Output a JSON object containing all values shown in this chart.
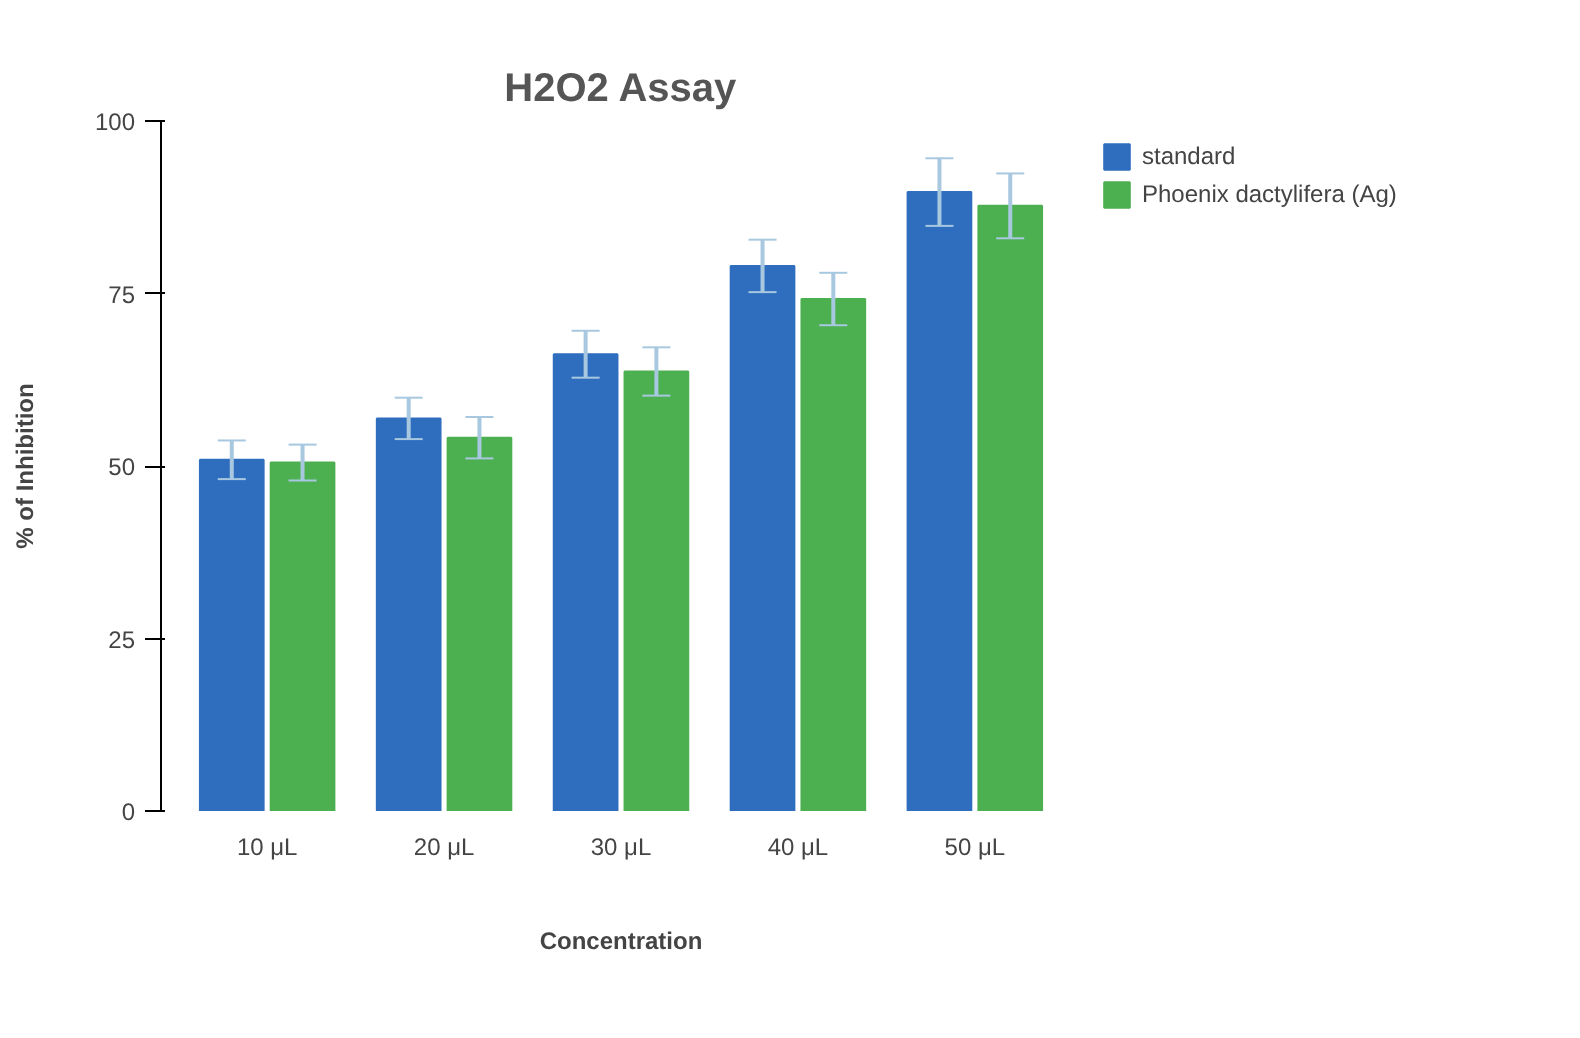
{
  "chart_data": {
    "type": "bar",
    "title": "H2O2 Assay",
    "xlabel": "Concentration",
    "ylabel": "% of Inhibition",
    "categories": [
      "10 μL",
      "20 μL",
      "30 μL",
      "40 μL",
      "50 μL"
    ],
    "series": [
      {
        "name": "standard",
        "color": "#2f6ebf",
        "values": [
          50.9,
          56.9,
          66.2,
          79.0,
          89.7
        ],
        "errors": [
          2.8,
          3,
          3.4,
          3.8,
          4.9
        ]
      },
      {
        "name": "Phoenix dactylifera (Ag)",
        "color": "#4caf50",
        "values": [
          50.5,
          54.1,
          63.7,
          74.2,
          87.7
        ],
        "errors": [
          2.6,
          3,
          3.5,
          3.8,
          4.7
        ]
      }
    ],
    "ylim": [
      0,
      100
    ],
    "yticks": [
      0,
      25,
      50,
      75,
      100
    ],
    "grid": false,
    "legend": "top right"
  }
}
